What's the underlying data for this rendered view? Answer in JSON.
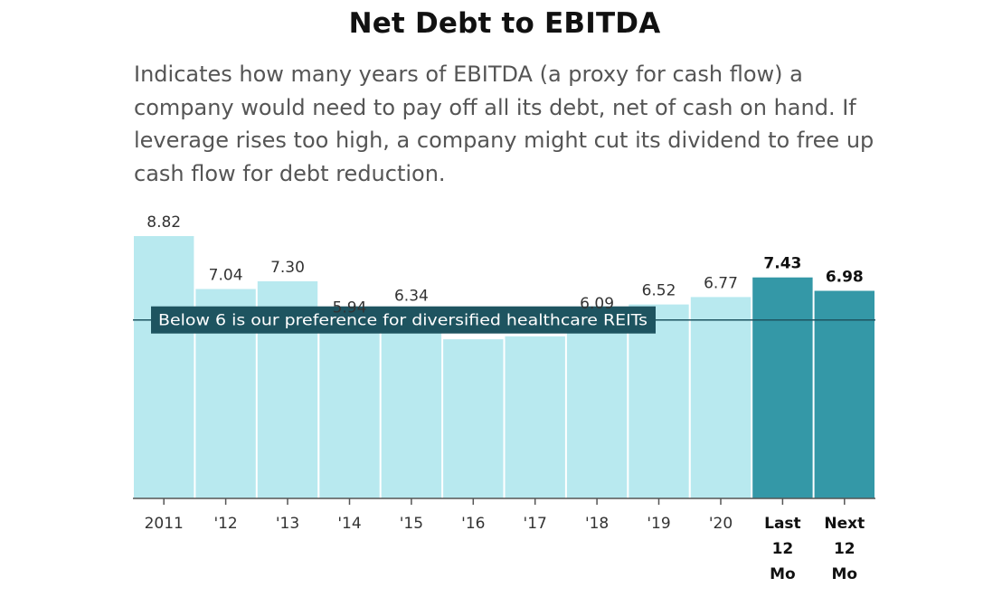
{
  "chart_data": {
    "type": "bar",
    "title": "Net Debt to EBITDA",
    "subtitle": "Indicates how many years of EBITDA (a proxy for cash flow) a company would need to pay off all its debt, net of cash on hand. If leverage rises too high, a company might cut its dividend to free up cash flow for debt reduction.",
    "categories": [
      "2011",
      "'12",
      "'13",
      "'14",
      "'15",
      "'16",
      "'17",
      "'18",
      "'19",
      "'20",
      "Last 12 Mo",
      "Next 12 Mo"
    ],
    "values": [
      8.82,
      7.04,
      7.3,
      5.94,
      6.34,
      5.35,
      5.45,
      6.09,
      6.52,
      6.77,
      7.43,
      6.98
    ],
    "value_labels": [
      "8.82",
      "7.04",
      "7.30",
      "5.94",
      "6.34",
      "",
      "",
      "6.09",
      "6.52",
      "6.77",
      "7.43",
      "6.98"
    ],
    "highlighted": [
      false,
      false,
      false,
      false,
      false,
      false,
      false,
      false,
      false,
      false,
      true,
      true
    ],
    "reference_line": {
      "value": 6,
      "label": "Below 6 is our preference for diversified healthcare REITs"
    },
    "ylim": [
      0,
      8.82
    ],
    "grid": false,
    "colors": {
      "bar": "#b8e9ef",
      "bar_highlight": "#3498a7",
      "reference_line": "#1e5460",
      "reference_label_bg": "#1e5460",
      "axis": "#555555"
    }
  }
}
